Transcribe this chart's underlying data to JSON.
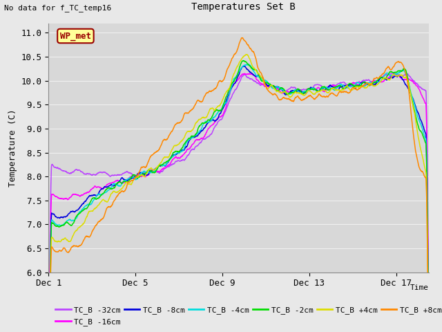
{
  "title": "Temperatures Set B",
  "subtitle": "No data for f_TC_temp16",
  "ylabel": "Temperature (C)",
  "xlabel": "Time",
  "wp_met_label": "WP_met",
  "ylim": [
    6.0,
    11.2
  ],
  "xlim": [
    0,
    17.5
  ],
  "xtick_positions": [
    0,
    4,
    8,
    12,
    16
  ],
  "xtick_labels": [
    "Dec 1",
    "Dec 5",
    "Dec 9",
    "Dec 13",
    "Dec 17"
  ],
  "ytick_positions": [
    6.0,
    6.5,
    7.0,
    7.5,
    8.0,
    8.5,
    9.0,
    9.5,
    10.0,
    10.5,
    11.0
  ],
  "series_colors": {
    "TC_B -32cm": "#bb44ff",
    "TC_B -16cm": "#ff00ff",
    "TC_B -8cm": "#0000dd",
    "TC_B -4cm": "#00dddd",
    "TC_B -2cm": "#00dd00",
    "TC_B +4cm": "#dddd00",
    "TC_B +8cm": "#ff8800"
  },
  "plot_bg_color": "#d8d8d8",
  "grid_color": "#f0f0f0",
  "wp_met_box_color": "#ffff99",
  "wp_met_border_color": "#990000",
  "wp_met_text_color": "#990000"
}
